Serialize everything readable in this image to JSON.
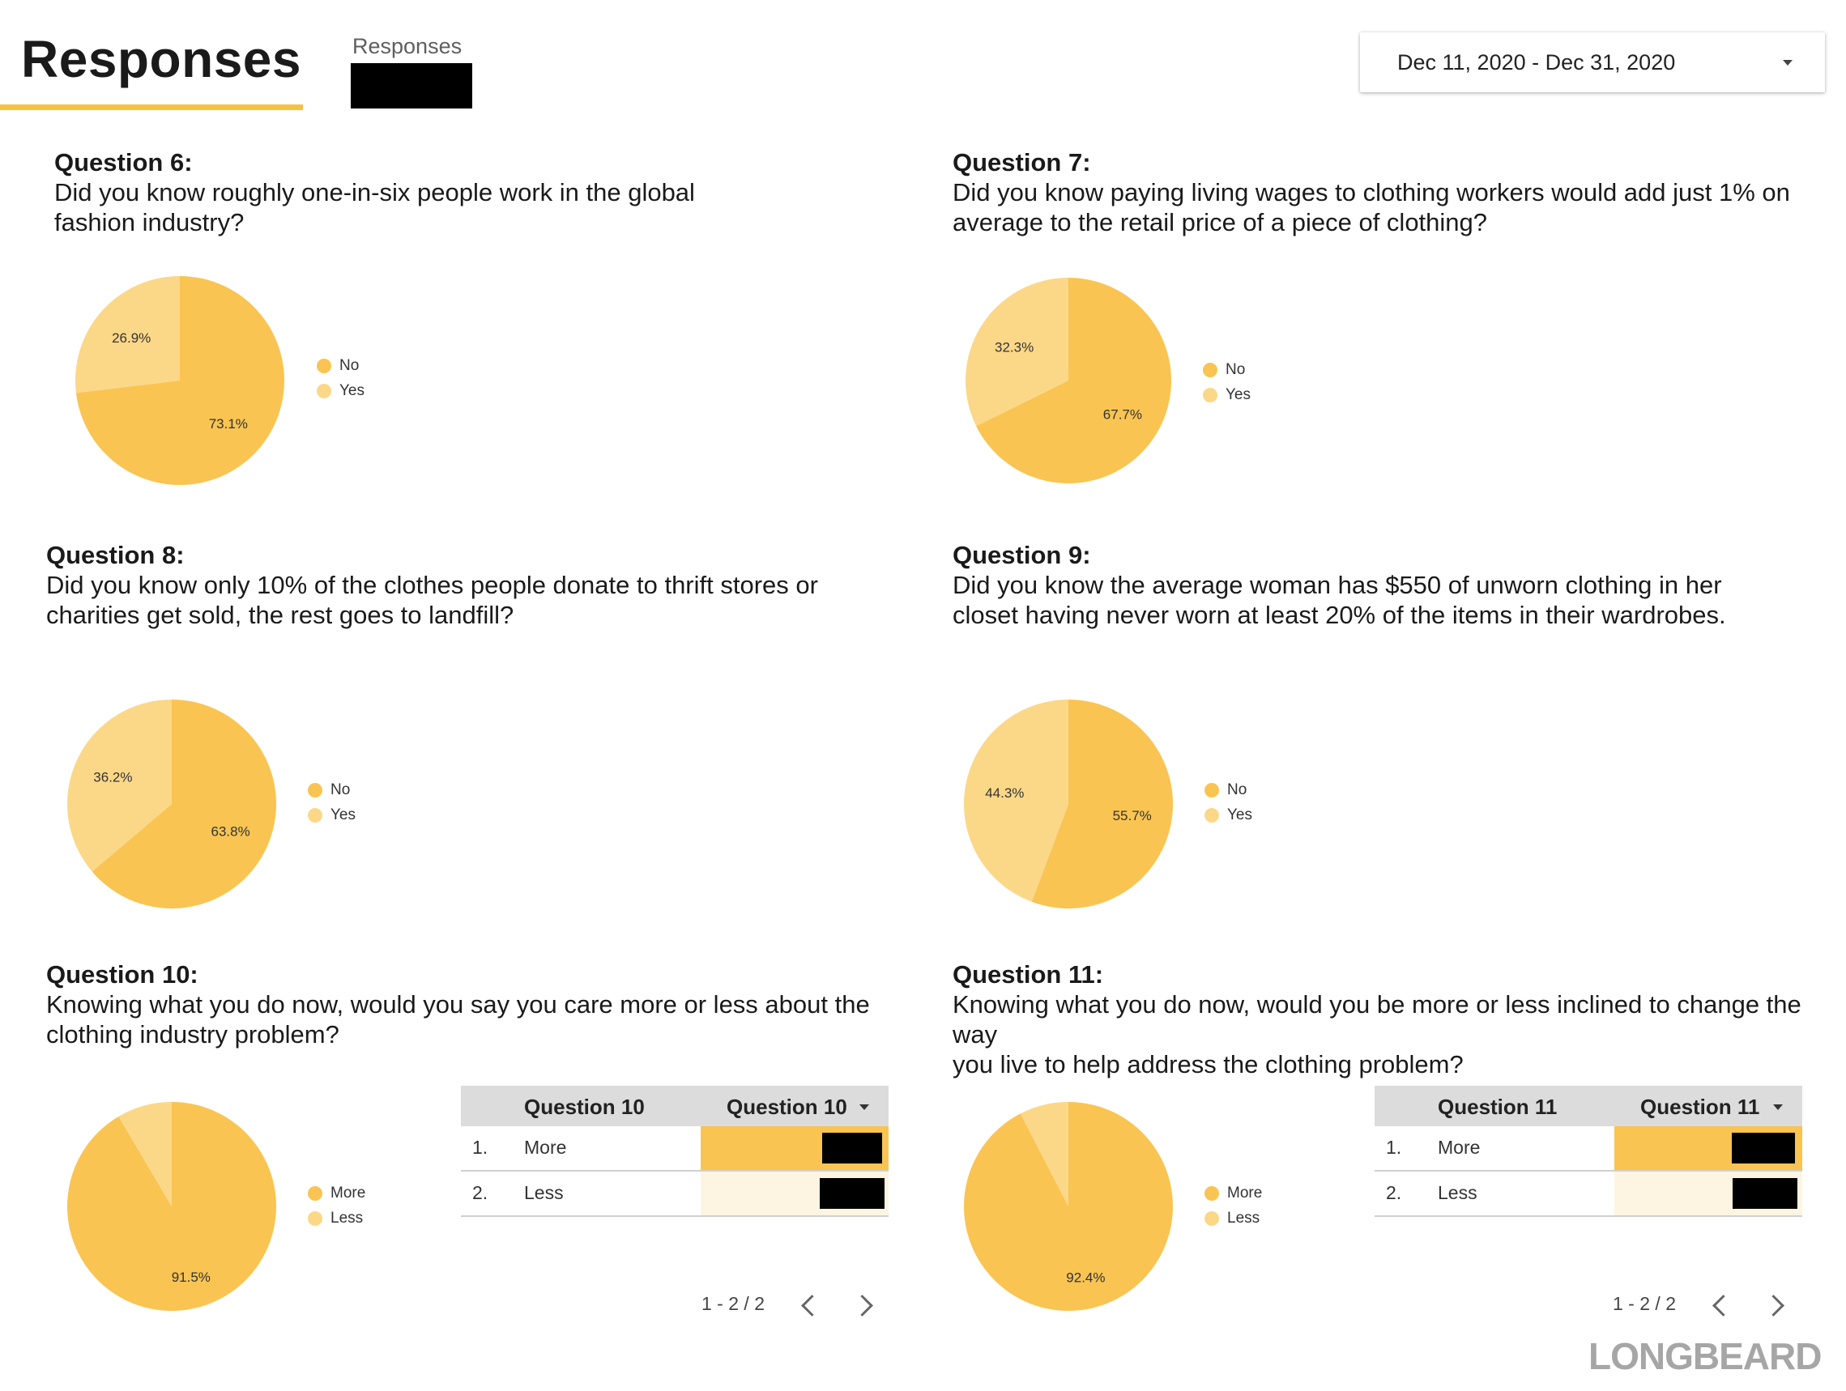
{
  "header": {
    "title": "Responses",
    "scorecard_label": "Responses",
    "date_range": "Dec 11, 2020 - Dec 31, 2020"
  },
  "colors": {
    "primary": "#f9c452",
    "secondary": "#fbd888",
    "underline": "#f6c143",
    "bar_light": "#fdf5e2"
  },
  "questions": [
    {
      "label": "Question 6:",
      "lines": [
        "Did you know roughly one-in-six people work in the global",
        "fashion industry?"
      ]
    },
    {
      "label": "Question 7:",
      "lines": [
        "Did you know paying living wages to clothing workers would add just 1% on",
        "average to the retail price of a piece of clothing?"
      ]
    },
    {
      "label": "Question 8:",
      "lines": [
        "Did you know only 10% of the clothes people donate to thrift stores or",
        "charities get sold, the rest goes to landfill?"
      ]
    },
    {
      "label": "Question 9:",
      "lines": [
        "Did you know the average woman has $550 of unworn clothing in her",
        "closet having never worn at least 20% of the items in their wardrobes."
      ]
    },
    {
      "label": "Question 10:",
      "lines": [
        "Knowing what you do now, would you say you care more or less about the",
        "clothing industry problem?"
      ]
    },
    {
      "label": "Question 11:",
      "lines": [
        "Knowing what you do now, would you be more or less inclined to change the way",
        "you live to help address the clothing problem?"
      ]
    }
  ],
  "chart_data": [
    {
      "type": "pie",
      "categories": [
        "No",
        "Yes"
      ],
      "values": [
        73.1,
        26.9
      ],
      "labels": [
        "73.1%",
        "26.9%"
      ],
      "legend": "right"
    },
    {
      "type": "pie",
      "categories": [
        "No",
        "Yes"
      ],
      "values": [
        67.7,
        32.3
      ],
      "labels": [
        "67.7%",
        "32.3%"
      ],
      "legend": "right"
    },
    {
      "type": "pie",
      "categories": [
        "No",
        "Yes"
      ],
      "values": [
        63.8,
        36.2
      ],
      "labels": [
        "63.8%",
        "36.2%"
      ],
      "legend": "right"
    },
    {
      "type": "pie",
      "categories": [
        "No",
        "Yes"
      ],
      "values": [
        55.7,
        44.3
      ],
      "labels": [
        "55.7%",
        "44.3%"
      ],
      "legend": "right"
    },
    {
      "type": "pie",
      "categories": [
        "More",
        "Less"
      ],
      "values": [
        91.5,
        8.5
      ],
      "labels": [
        "91.5%",
        ""
      ],
      "legend": "right"
    },
    {
      "type": "pie",
      "categories": [
        "More",
        "Less"
      ],
      "values": [
        92.4,
        7.6
      ],
      "labels": [
        "92.4%",
        ""
      ],
      "legend": "right"
    },
    {
      "type": "table",
      "columns": [
        "Question 10",
        "Question 10"
      ],
      "rows": [
        {
          "index": "1.",
          "category": "More"
        },
        {
          "index": "2.",
          "category": "Less"
        }
      ],
      "pagination": "1 - 2 / 2"
    },
    {
      "type": "table",
      "columns": [
        "Question 11",
        "Question 11"
      ],
      "rows": [
        {
          "index": "1.",
          "category": "More"
        },
        {
          "index": "2.",
          "category": "Less"
        }
      ],
      "pagination": "1 - 2 / 2"
    }
  ],
  "logo": "LONGBEARD"
}
